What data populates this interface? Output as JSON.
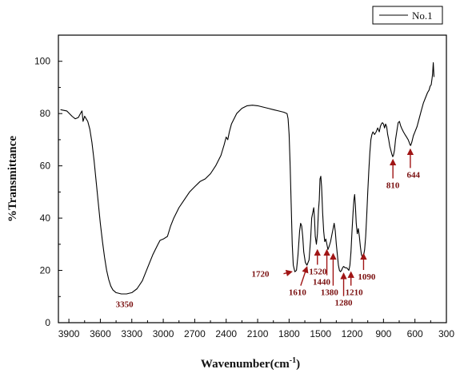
{
  "chart_data": {
    "type": "line",
    "xlabel": "Wavenumber(cm",
    "xlabel_sup": "-1",
    "xlabel_close": ")",
    "ylabel": "%Transmittance",
    "xlim": [
      4000,
      300
    ],
    "ylim": [
      0,
      110
    ],
    "x_reversed": true,
    "x_ticks": [
      3900,
      3600,
      3300,
      3000,
      2700,
      2400,
      2100,
      1800,
      1500,
      1200,
      900,
      600,
      300
    ],
    "y_ticks": [
      0,
      20,
      40,
      60,
      80,
      100
    ],
    "legend": {
      "position": "top-right",
      "entries": [
        "No.1"
      ]
    },
    "series": [
      {
        "name": "No.1",
        "color": "#000000",
        "points": [
          [
            3980,
            81.5
          ],
          [
            3920,
            81
          ],
          [
            3870,
            79
          ],
          [
            3840,
            78
          ],
          [
            3810,
            78.5
          ],
          [
            3790,
            80
          ],
          [
            3775,
            81
          ],
          [
            3765,
            77
          ],
          [
            3750,
            79
          ],
          [
            3735,
            78
          ],
          [
            3720,
            77
          ],
          [
            3700,
            74
          ],
          [
            3680,
            69
          ],
          [
            3660,
            62
          ],
          [
            3640,
            54
          ],
          [
            3620,
            46
          ],
          [
            3600,
            38
          ],
          [
            3580,
            31
          ],
          [
            3560,
            25
          ],
          [
            3540,
            20
          ],
          [
            3520,
            16.5
          ],
          [
            3500,
            14
          ],
          [
            3480,
            12.5
          ],
          [
            3450,
            11.5
          ],
          [
            3400,
            11
          ],
          [
            3350,
            11
          ],
          [
            3300,
            11.5
          ],
          [
            3250,
            13
          ],
          [
            3200,
            16
          ],
          [
            3150,
            21
          ],
          [
            3100,
            26
          ],
          [
            3050,
            30
          ],
          [
            3030,
            31.5
          ],
          [
            3000,
            32
          ],
          [
            2960,
            33
          ],
          [
            2930,
            37
          ],
          [
            2900,
            40
          ],
          [
            2850,
            44
          ],
          [
            2800,
            47
          ],
          [
            2750,
            50
          ],
          [
            2700,
            52
          ],
          [
            2650,
            54
          ],
          [
            2600,
            55
          ],
          [
            2550,
            57
          ],
          [
            2500,
            60
          ],
          [
            2450,
            64
          ],
          [
            2420,
            68
          ],
          [
            2400,
            71
          ],
          [
            2385,
            70
          ],
          [
            2370,
            73
          ],
          [
            2350,
            76
          ],
          [
            2300,
            80
          ],
          [
            2250,
            82
          ],
          [
            2200,
            83
          ],
          [
            2150,
            83.2
          ],
          [
            2100,
            83
          ],
          [
            2050,
            82.5
          ],
          [
            2000,
            82
          ],
          [
            1950,
            81.5
          ],
          [
            1900,
            81
          ],
          [
            1850,
            80.5
          ],
          [
            1820,
            80
          ],
          [
            1810,
            78
          ],
          [
            1800,
            72
          ],
          [
            1790,
            60
          ],
          [
            1780,
            45
          ],
          [
            1770,
            30
          ],
          [
            1760,
            22
          ],
          [
            1745,
            19.5
          ],
          [
            1730,
            20
          ],
          [
            1715,
            26
          ],
          [
            1700,
            35
          ],
          [
            1690,
            38
          ],
          [
            1680,
            37
          ],
          [
            1670,
            33
          ],
          [
            1660,
            27
          ],
          [
            1645,
            23
          ],
          [
            1630,
            22
          ],
          [
            1610,
            24
          ],
          [
            1595,
            32
          ],
          [
            1585,
            40
          ],
          [
            1575,
            42
          ],
          [
            1565,
            44
          ],
          [
            1558,
            40
          ],
          [
            1550,
            33
          ],
          [
            1540,
            30
          ],
          [
            1530,
            34
          ],
          [
            1520,
            43
          ],
          [
            1512,
            47
          ],
          [
            1505,
            55
          ],
          [
            1498,
            56
          ],
          [
            1490,
            52
          ],
          [
            1480,
            42
          ],
          [
            1470,
            35
          ],
          [
            1460,
            31
          ],
          [
            1450,
            32
          ],
          [
            1440,
            30
          ],
          [
            1430,
            28
          ],
          [
            1420,
            29
          ],
          [
            1405,
            31
          ],
          [
            1390,
            34
          ],
          [
            1380,
            36
          ],
          [
            1370,
            38
          ],
          [
            1360,
            35
          ],
          [
            1350,
            30
          ],
          [
            1340,
            26
          ],
          [
            1330,
            22
          ],
          [
            1320,
            20
          ],
          [
            1310,
            19.5
          ],
          [
            1300,
            20
          ],
          [
            1290,
            21
          ],
          [
            1280,
            21.5
          ],
          [
            1265,
            21
          ],
          [
            1250,
            21
          ],
          [
            1240,
            20.5
          ],
          [
            1230,
            20
          ],
          [
            1220,
            22
          ],
          [
            1210,
            27
          ],
          [
            1200,
            35
          ],
          [
            1190,
            42
          ],
          [
            1182,
            47
          ],
          [
            1175,
            49
          ],
          [
            1168,
            45
          ],
          [
            1160,
            38
          ],
          [
            1150,
            34
          ],
          [
            1140,
            36
          ],
          [
            1130,
            33
          ],
          [
            1120,
            29
          ],
          [
            1110,
            26
          ],
          [
            1100,
            25
          ],
          [
            1090,
            25.5
          ],
          [
            1080,
            28
          ],
          [
            1070,
            33
          ],
          [
            1060,
            41
          ],
          [
            1050,
            50
          ],
          [
            1040,
            58
          ],
          [
            1030,
            65
          ],
          [
            1020,
            70
          ],
          [
            1010,
            72
          ],
          [
            1000,
            73
          ],
          [
            985,
            72
          ],
          [
            970,
            73
          ],
          [
            955,
            74.5
          ],
          [
            940,
            73
          ],
          [
            930,
            75
          ],
          [
            920,
            76
          ],
          [
            910,
            76.5
          ],
          [
            900,
            76
          ],
          [
            890,
            74.5
          ],
          [
            880,
            76
          ],
          [
            870,
            75
          ],
          [
            860,
            72
          ],
          [
            850,
            70
          ],
          [
            840,
            67.5
          ],
          [
            830,
            66
          ],
          [
            820,
            64.5
          ],
          [
            812,
            63.5
          ],
          [
            805,
            64
          ],
          [
            795,
            66
          ],
          [
            785,
            70
          ],
          [
            770,
            74
          ],
          [
            760,
            76.5
          ],
          [
            748,
            77
          ],
          [
            738,
            75.5
          ],
          [
            728,
            74.5
          ],
          [
            710,
            73
          ],
          [
            695,
            72
          ],
          [
            680,
            71
          ],
          [
            665,
            70
          ],
          [
            655,
            69
          ],
          [
            646,
            68
          ],
          [
            640,
            67.8
          ],
          [
            630,
            69
          ],
          [
            615,
            71.5
          ],
          [
            600,
            73
          ],
          [
            580,
            75
          ],
          [
            560,
            78
          ],
          [
            540,
            81
          ],
          [
            520,
            84
          ],
          [
            500,
            86
          ],
          [
            480,
            88
          ],
          [
            465,
            89
          ],
          [
            455,
            90.5
          ],
          [
            445,
            91
          ],
          [
            438,
            93
          ],
          [
            432,
            95
          ],
          [
            428,
            97.5
          ],
          [
            425,
            99.5
          ],
          [
            422,
            97
          ],
          [
            418,
            94
          ]
        ]
      }
    ],
    "annotations": [
      {
        "label": "3350",
        "x": 3350,
        "y": 11,
        "label_x": 3370,
        "label_y": 6,
        "arrow": false
      },
      {
        "label": "1720",
        "x": 1745,
        "y": 19.5,
        "label_x": 1990,
        "label_y": 17.5,
        "arrow": true,
        "dir": "right"
      },
      {
        "label": "1610",
        "x": 1630,
        "y": 22.5,
        "label_x": 1720,
        "label_y": 10.5,
        "arrow": true,
        "dir": "upright"
      },
      {
        "label": "1520",
        "x": 1530,
        "y": 29,
        "label_x": 1525,
        "label_y": 18.5,
        "arrow": true,
        "dir": "up"
      },
      {
        "label": "1440",
        "x": 1440,
        "y": 29,
        "label_x": 1490,
        "label_y": 14.5,
        "arrow": true,
        "dir": "up"
      },
      {
        "label": "1380",
        "x": 1380,
        "y": 27.5,
        "label_x": 1415,
        "label_y": 10.5,
        "arrow": true,
        "dir": "up"
      },
      {
        "label": "1280",
        "x": 1280,
        "y": 20,
        "label_x": 1280,
        "label_y": 6.5,
        "arrow": true,
        "dir": "up"
      },
      {
        "label": "1210",
        "x": 1210,
        "y": 20.5,
        "label_x": 1180,
        "label_y": 10.5,
        "arrow": true,
        "dir": "up"
      },
      {
        "label": "1090",
        "x": 1090,
        "y": 27.5,
        "label_x": 1060,
        "label_y": 16.5,
        "arrow": true,
        "dir": "up"
      },
      {
        "label": "810",
        "x": 810,
        "y": 63.5,
        "label_x": 810,
        "label_y": 51.5,
        "arrow": true,
        "dir": "up"
      },
      {
        "label": "644",
        "x": 644,
        "y": 67.5,
        "label_x": 615,
        "label_y": 55.5,
        "arrow": true,
        "dir": "up"
      }
    ],
    "annotation_color": "#a01515"
  }
}
